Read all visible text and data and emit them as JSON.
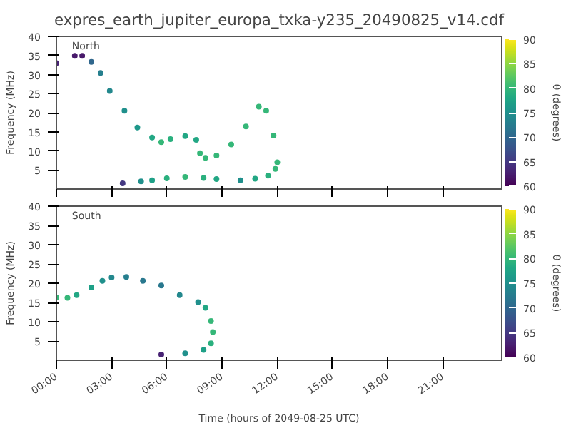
{
  "chart_data": [
    {
      "type": "scatter",
      "title": "expres_earth_jupiter_europa_txka-y235_20490825_v14.cdf",
      "ylabel": "Frequency (MHz)",
      "clabel": "θ (degrees)",
      "annotations": [
        "North"
      ],
      "marker": "circle",
      "grid": false,
      "tick_labels": "y",
      "x": [
        0,
        1.0,
        1.4,
        1.9,
        2.4,
        2.9,
        3.7,
        4.4,
        5.2,
        5.7,
        6.2,
        7.0,
        7.6,
        7.8,
        8.1,
        8.7,
        9.5,
        10.3,
        11.0,
        11.4,
        11.8,
        12.0,
        11.9,
        11.5,
        10.8,
        10.0,
        8.7,
        8.0,
        7.0,
        6.0,
        5.2,
        4.6,
        3.6
      ],
      "values": [
        33.0,
        34.9,
        34.9,
        33.3,
        30.4,
        25.7,
        20.5,
        16.1,
        13.5,
        12.3,
        13.1,
        13.9,
        12.9,
        9.4,
        8.2,
        8.8,
        11.7,
        16.4,
        21.6,
        20.5,
        14.0,
        7.0,
        5.3,
        3.5,
        2.7,
        2.3,
        2.6,
        2.9,
        3.2,
        2.8,
        2.3,
        2.0,
        1.5
      ],
      "cvalues": [
        63,
        62,
        62,
        70,
        73,
        74,
        75,
        76,
        78,
        80,
        79,
        78,
        78,
        80,
        80,
        80,
        80,
        80,
        80,
        80,
        80,
        80,
        80,
        79,
        78,
        75,
        78,
        79,
        80,
        79,
        77,
        75,
        65
      ],
      "xlim": [
        0,
        24.2
      ],
      "xticks": [
        {
          "value": 0,
          "label": null
        },
        {
          "value": 3,
          "label": null
        },
        {
          "value": 6,
          "label": null
        },
        {
          "value": 9,
          "label": null
        },
        {
          "value": 12,
          "label": null
        },
        {
          "value": 15,
          "label": null
        },
        {
          "value": 18,
          "label": null
        },
        {
          "value": 21,
          "label": null
        }
      ],
      "ylim": [
        0,
        40
      ],
      "yticks": [
        5,
        10,
        15,
        20,
        25,
        30,
        35,
        40
      ],
      "clim": [
        60,
        90
      ],
      "cticks": [
        60,
        65,
        70,
        75,
        80,
        85,
        90
      ]
    },
    {
      "type": "scatter",
      "xlabel": "Time (hours of 2049-08-25 UTC)",
      "ylabel": "Frequency (MHz)",
      "clabel": "θ (degrees)",
      "annotations": [
        "South"
      ],
      "marker": "circle",
      "grid": false,
      "x": [
        0,
        0.6,
        1.1,
        1.9,
        2.5,
        3.0,
        3.8,
        4.7,
        5.7,
        6.7,
        7.7,
        8.1,
        8.4,
        8.5,
        8.4,
        8.0,
        7.0,
        5.7
      ],
      "values": [
        16.3,
        16.2,
        16.9,
        18.9,
        20.6,
        21.5,
        21.6,
        20.6,
        19.4,
        16.9,
        15.1,
        13.6,
        10.2,
        7.3,
        4.4,
        2.7,
        1.8,
        1.5
      ],
      "cvalues": [
        80,
        80,
        78,
        77,
        75,
        74,
        73,
        72,
        72,
        74,
        75,
        78,
        80,
        80,
        79,
        77,
        75,
        63
      ],
      "xlim": [
        0,
        24.2
      ],
      "xticks": [
        {
          "value": 0,
          "label": "00:00"
        },
        {
          "value": 3,
          "label": "03:00"
        },
        {
          "value": 6,
          "label": "06:00"
        },
        {
          "value": 9,
          "label": "09:00"
        },
        {
          "value": 12,
          "label": "12:00"
        },
        {
          "value": 15,
          "label": "15:00"
        },
        {
          "value": 18,
          "label": "18:00"
        },
        {
          "value": 21,
          "label": "21:00"
        }
      ],
      "ylim": [
        0,
        40
      ],
      "yticks": [
        5,
        10,
        15,
        20,
        25,
        30,
        35,
        40
      ],
      "clim": [
        60,
        90
      ],
      "cticks": [
        60,
        65,
        70,
        75,
        80,
        85,
        90
      ]
    }
  ]
}
